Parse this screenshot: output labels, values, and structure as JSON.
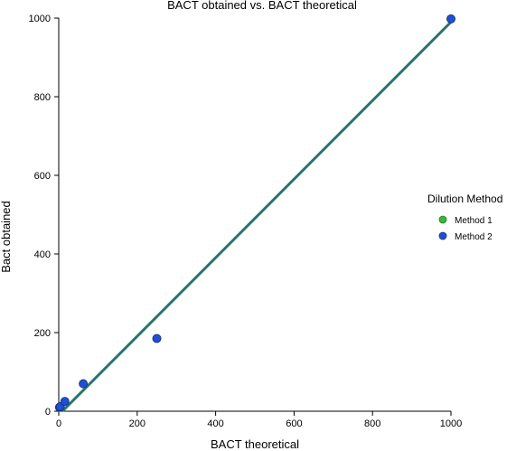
{
  "chart_data": {
    "type": "scatter",
    "title": "BACT obtained vs. BACT theoretical",
    "xlabel": "BACT theoretical",
    "ylabel": "Bact obtained",
    "xlim": [
      0,
      1000
    ],
    "ylim": [
      0,
      1000
    ],
    "xticks": [
      "0",
      "200",
      "400",
      "600",
      "800",
      "1000"
    ],
    "yticks": [
      "0",
      "200",
      "400",
      "600",
      "800",
      "1000"
    ],
    "grid": false,
    "legend": {
      "title": "Dilution Method",
      "position": "right",
      "entries": [
        {
          "label": "Method 1",
          "color": "#3cb43c"
        },
        {
          "label": "Method 2",
          "color": "#1f4fd8"
        }
      ]
    },
    "series": [
      {
        "name": "Method 1",
        "color": "#3cb43c",
        "x": [
          1.95,
          3.9,
          15.6,
          62.5,
          250,
          1000
        ],
        "y": [
          10,
          12,
          25,
          70,
          185,
          998
        ]
      },
      {
        "name": "Method 2",
        "color": "#1f4fd8",
        "x": [
          1.95,
          3.9,
          15.6,
          62.5,
          250,
          1000
        ],
        "y": [
          10,
          12,
          25,
          70,
          185,
          998
        ]
      }
    ],
    "fit_line": {
      "color": "#1f6f8b",
      "x": [
        0,
        1000
      ],
      "y": [
        -8,
        990
      ]
    }
  }
}
